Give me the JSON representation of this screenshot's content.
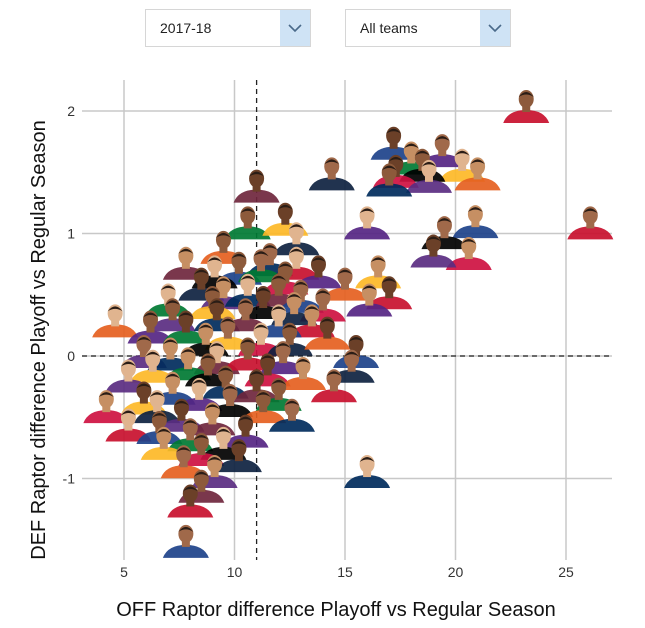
{
  "controls": {
    "season_select": {
      "value": "2017-18",
      "icon": "chevron-down-icon"
    },
    "team_select": {
      "value": "All teams",
      "icon": "chevron-down-icon"
    }
  },
  "colors": {
    "grid": "#c8c8c8",
    "reference_line": "#222222",
    "dropdown_arrow_bg": "#cfe3f5",
    "marker": "#5a5a5a"
  },
  "chart_data": {
    "type": "scatter",
    "title": "",
    "xlabel": "OFF Raptor difference Playoff vs Regular Season",
    "ylabel": "DEF Raptor difference Playoff vs Regular Season",
    "xlim": [
      3.2,
      27.2
    ],
    "ylim": [
      -1.65,
      2.2
    ],
    "xticks": [
      5,
      10,
      15,
      20,
      25
    ],
    "yticks": [
      -1,
      0,
      1,
      2
    ],
    "grid": true,
    "reference_lines": {
      "x": 11,
      "y": 0,
      "style": "dashed"
    },
    "marker_style": "player headshot",
    "points": [
      {
        "x": 23.2,
        "y": 2.0
      },
      {
        "x": 17.2,
        "y": 1.7
      },
      {
        "x": 19.4,
        "y": 1.64
      },
      {
        "x": 18.0,
        "y": 1.58
      },
      {
        "x": 20.3,
        "y": 1.52
      },
      {
        "x": 18.5,
        "y": 1.52
      },
      {
        "x": 17.3,
        "y": 1.47
      },
      {
        "x": 14.4,
        "y": 1.45
      },
      {
        "x": 21.0,
        "y": 1.45
      },
      {
        "x": 18.8,
        "y": 1.43
      },
      {
        "x": 17.0,
        "y": 1.4
      },
      {
        "x": 11.0,
        "y": 1.35
      },
      {
        "x": 26.1,
        "y": 1.05
      },
      {
        "x": 20.9,
        "y": 1.06
      },
      {
        "x": 16.0,
        "y": 1.05
      },
      {
        "x": 10.6,
        "y": 1.05
      },
      {
        "x": 12.3,
        "y": 1.08
      },
      {
        "x": 19.5,
        "y": 0.97
      },
      {
        "x": 20.6,
        "y": 0.8
      },
      {
        "x": 12.8,
        "y": 0.92
      },
      {
        "x": 9.5,
        "y": 0.85
      },
      {
        "x": 19.0,
        "y": 0.82
      },
      {
        "x": 11.6,
        "y": 0.75
      },
      {
        "x": 7.8,
        "y": 0.72
      },
      {
        "x": 12.8,
        "y": 0.72
      },
      {
        "x": 10.2,
        "y": 0.68
      },
      {
        "x": 13.8,
        "y": 0.65
      },
      {
        "x": 11.2,
        "y": 0.7
      },
      {
        "x": 16.5,
        "y": 0.65
      },
      {
        "x": 9.1,
        "y": 0.65
      },
      {
        "x": 12.3,
        "y": 0.6
      },
      {
        "x": 8.5,
        "y": 0.55
      },
      {
        "x": 15.0,
        "y": 0.55
      },
      {
        "x": 9.5,
        "y": 0.48
      },
      {
        "x": 10.6,
        "y": 0.5
      },
      {
        "x": 12.0,
        "y": 0.5
      },
      {
        "x": 17.0,
        "y": 0.48
      },
      {
        "x": 13.0,
        "y": 0.45
      },
      {
        "x": 16.1,
        "y": 0.42
      },
      {
        "x": 7.0,
        "y": 0.42
      },
      {
        "x": 9.0,
        "y": 0.4
      },
      {
        "x": 11.3,
        "y": 0.4
      },
      {
        "x": 14.0,
        "y": 0.38
      },
      {
        "x": 12.7,
        "y": 0.35
      },
      {
        "x": 4.6,
        "y": 0.25
      },
      {
        "x": 7.2,
        "y": 0.3
      },
      {
        "x": 9.2,
        "y": 0.3
      },
      {
        "x": 10.5,
        "y": 0.3
      },
      {
        "x": 13.5,
        "y": 0.25
      },
      {
        "x": 12.0,
        "y": 0.25
      },
      {
        "x": 6.2,
        "y": 0.2
      },
      {
        "x": 7.8,
        "y": 0.2
      },
      {
        "x": 9.7,
        "y": 0.15
      },
      {
        "x": 8.7,
        "y": 0.1
      },
      {
        "x": 11.2,
        "y": 0.1
      },
      {
        "x": 12.5,
        "y": 0.1
      },
      {
        "x": 14.2,
        "y": 0.15
      },
      {
        "x": 5.9,
        "y": 0.0
      },
      {
        "x": 7.1,
        "y": -0.02
      },
      {
        "x": 9.2,
        "y": -0.05
      },
      {
        "x": 10.6,
        "y": -0.02
      },
      {
        "x": 15.5,
        "y": 0.0
      },
      {
        "x": 12.2,
        "y": -0.05
      },
      {
        "x": 7.9,
        "y": -0.1
      },
      {
        "x": 6.3,
        "y": -0.12
      },
      {
        "x": 8.8,
        "y": -0.15
      },
      {
        "x": 11.5,
        "y": -0.15
      },
      {
        "x": 15.3,
        "y": -0.12
      },
      {
        "x": 13.1,
        "y": -0.18
      },
      {
        "x": 5.2,
        "y": -0.2
      },
      {
        "x": 9.6,
        "y": -0.25
      },
      {
        "x": 11.0,
        "y": -0.28
      },
      {
        "x": 14.5,
        "y": -0.28
      },
      {
        "x": 7.2,
        "y": -0.3
      },
      {
        "x": 8.4,
        "y": -0.35
      },
      {
        "x": 12.0,
        "y": -0.35
      },
      {
        "x": 5.9,
        "y": -0.38
      },
      {
        "x": 9.8,
        "y": -0.4
      },
      {
        "x": 4.2,
        "y": -0.45
      },
      {
        "x": 6.5,
        "y": -0.45
      },
      {
        "x": 11.3,
        "y": -0.45
      },
      {
        "x": 7.6,
        "y": -0.52
      },
      {
        "x": 12.6,
        "y": -0.52
      },
      {
        "x": 9.0,
        "y": -0.55
      },
      {
        "x": 5.2,
        "y": -0.6
      },
      {
        "x": 6.6,
        "y": -0.62
      },
      {
        "x": 10.5,
        "y": -0.65
      },
      {
        "x": 8.0,
        "y": -0.68
      },
      {
        "x": 6.8,
        "y": -0.75
      },
      {
        "x": 9.5,
        "y": -0.75
      },
      {
        "x": 8.5,
        "y": -0.8
      },
      {
        "x": 10.2,
        "y": -0.85
      },
      {
        "x": 7.7,
        "y": -0.9
      },
      {
        "x": 9.1,
        "y": -0.98
      },
      {
        "x": 16.0,
        "y": -0.98
      },
      {
        "x": 8.5,
        "y": -1.1
      },
      {
        "x": 8.0,
        "y": -1.22
      },
      {
        "x": 7.8,
        "y": -1.55
      }
    ]
  }
}
